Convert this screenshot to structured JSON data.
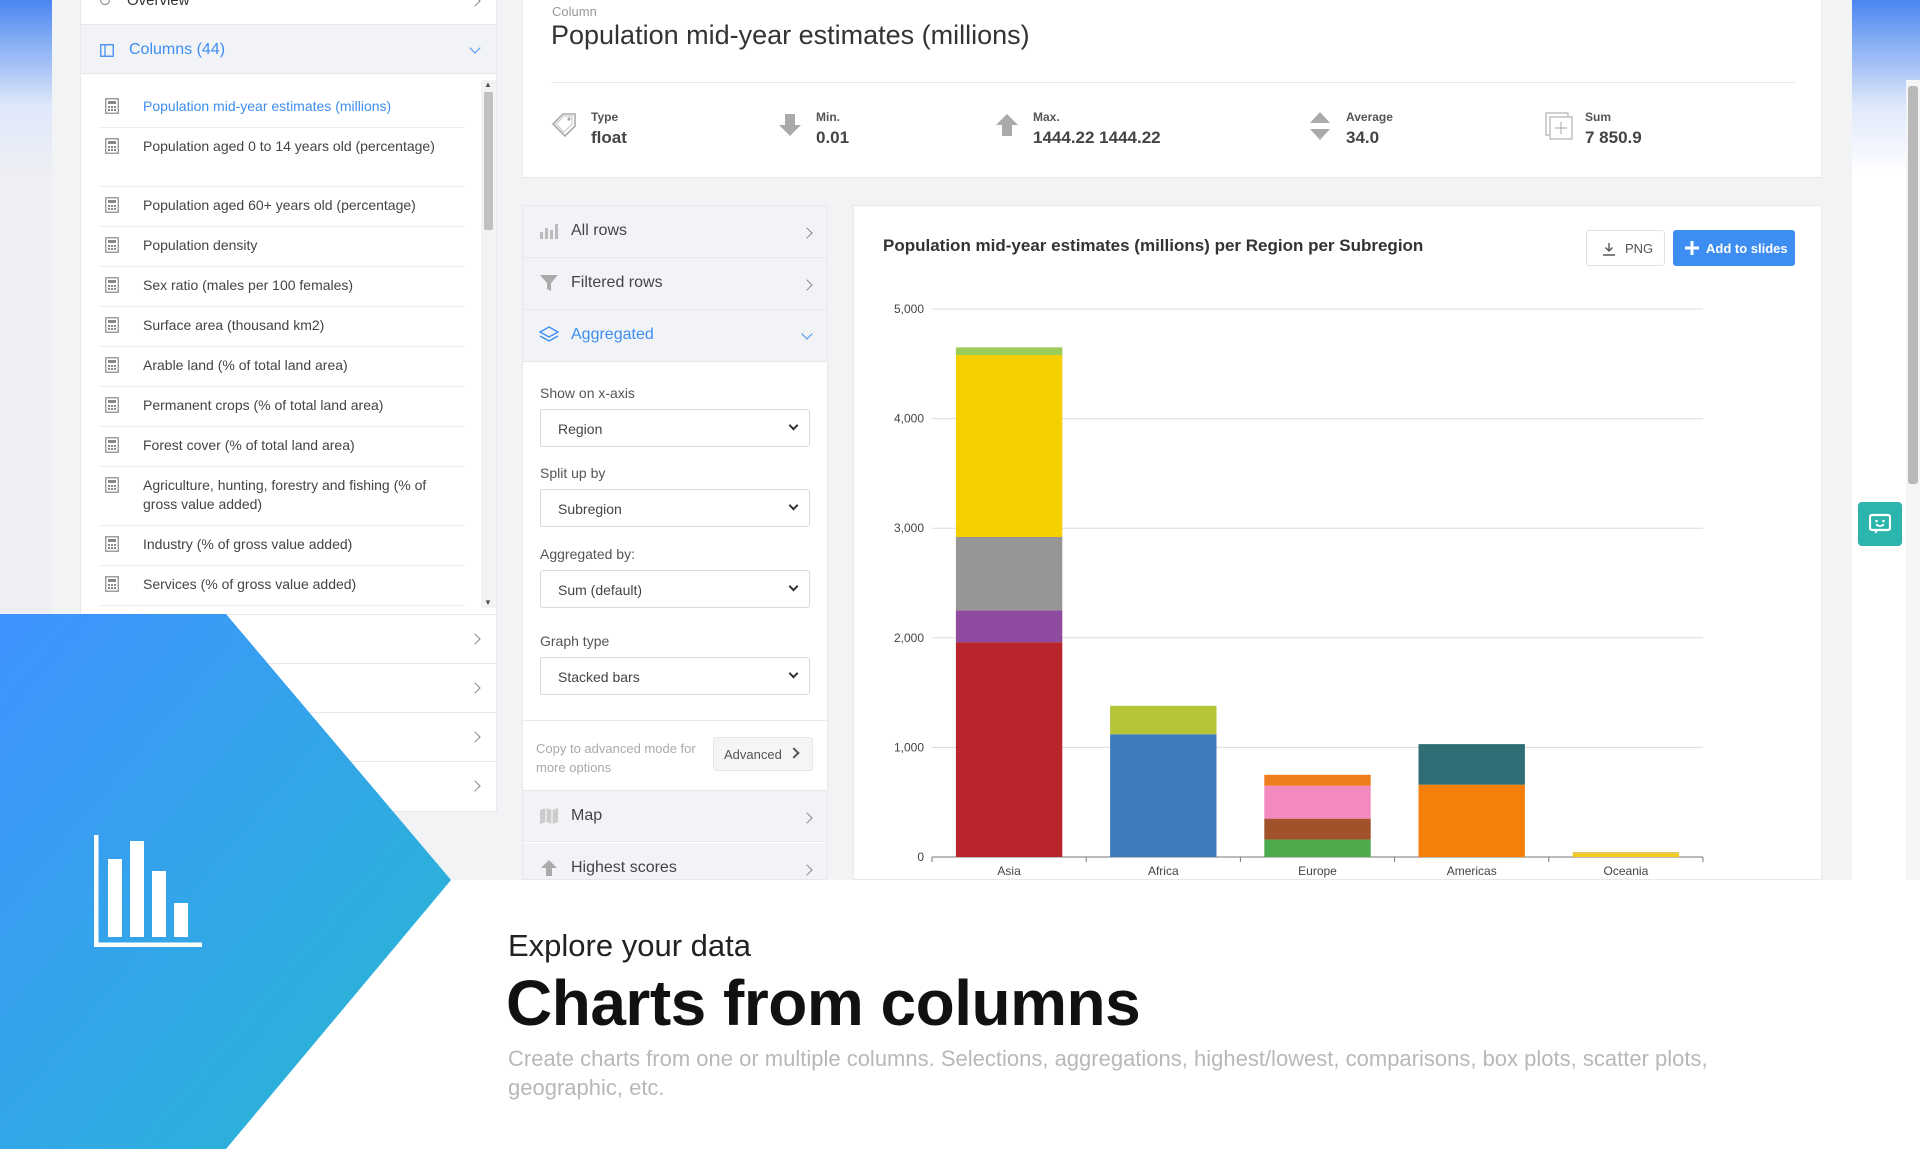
{
  "sidebar": {
    "overview_label": "Overview",
    "columns_header": "Columns (44)",
    "items": [
      {
        "label": "Population mid-year estimates (millions)"
      },
      {
        "label": "Population aged 0 to 14 years old (percentage)"
      },
      {
        "label": "Population aged 60+ years old (percentage)"
      },
      {
        "label": "Population density"
      },
      {
        "label": "Sex ratio (males per 100 females)"
      },
      {
        "label": "Surface area (thousand km2)"
      },
      {
        "label": "Arable land (% of total land area)"
      },
      {
        "label": "Permanent crops (% of total land area)"
      },
      {
        "label": "Forest cover (% of total land area)"
      },
      {
        "label": "Agriculture, hunting, forestry and fishing (% of gross value added)"
      },
      {
        "label": "Industry (% of gross value added)"
      },
      {
        "label": "Services (% of gross value added)"
      }
    ]
  },
  "column": {
    "label": "Column",
    "title": "Population mid-year estimates (millions)",
    "stats": {
      "type_label": "Type",
      "type_value": "float",
      "min_label": "Min.",
      "min_value": "0.01",
      "max_label": "Max.",
      "max_value": "1444.22 1444.22",
      "avg_label": "Average",
      "avg_value": "34.0",
      "sum_label": "Sum",
      "sum_value": "7 850.9"
    }
  },
  "options": {
    "all_rows": "All rows",
    "filtered_rows": "Filtered rows",
    "aggregated": "Aggregated",
    "x_axis_label": "Show on x-axis",
    "x_axis_value": "Region",
    "split_label": "Split up by",
    "split_value": "Subregion",
    "agg_label": "Aggregated by:",
    "agg_value": "Sum (default)",
    "graph_label": "Graph type",
    "graph_value": "Stacked bars",
    "copy_note": "Copy to advanced mode for more options",
    "advanced_button": "Advanced",
    "map": "Map",
    "highest_scores": "Highest scores"
  },
  "chart_actions": {
    "png_label": "PNG",
    "slides_label": "Add to slides"
  },
  "chart_data": {
    "type": "bar",
    "stacked": true,
    "title": "Population mid-year estimates (millions) per Region per Subregion",
    "xlabel": "",
    "ylabel": "",
    "ylim": [
      0,
      5000
    ],
    "yticks": [
      0,
      1000,
      2000,
      3000,
      4000,
      5000
    ],
    "ytick_labels": [
      "0",
      "1,000",
      "2,000",
      "3,000",
      "4,000",
      "5,000"
    ],
    "categories": [
      "Asia",
      "Africa",
      "Europe",
      "Americas",
      "Oceania"
    ],
    "stacks": [
      [
        {
          "value": 1960,
          "color": "#b9252a"
        },
        {
          "value": 290,
          "color": "#8e4ba0"
        },
        {
          "value": 670,
          "color": "#969696"
        },
        {
          "value": 1660,
          "color": "#f6cf00"
        },
        {
          "value": 70,
          "color": "#9bcb58"
        }
      ],
      [
        {
          "value": 1120,
          "color": "#3d7cbd"
        },
        {
          "value": 260,
          "color": "#b6c43a"
        }
      ],
      [
        {
          "value": 160,
          "color": "#4daa4d"
        },
        {
          "value": 190,
          "color": "#a1522a"
        },
        {
          "value": 300,
          "color": "#f289bf"
        },
        {
          "value": 100,
          "color": "#ee7d1e"
        }
      ],
      [
        {
          "value": 660,
          "color": "#f57f0a"
        },
        {
          "value": 370,
          "color": "#2f6e74"
        }
      ],
      [
        {
          "value": 30,
          "color": "#f2cd1c"
        },
        {
          "value": 15,
          "color": "#e6c24a"
        }
      ]
    ]
  },
  "banner": {
    "tagline": "Explore your data",
    "headline": "Charts from columns",
    "subtext": "Create charts from one or multiple columns. Selections, aggregations, highest/lowest, comparisons, box plots, scatter plots, geographic, etc."
  },
  "colors": {
    "accent": "#3d8ef0",
    "banner_gradient_start": "#3e93ff",
    "banner_gradient_end": "#27b9d0"
  }
}
